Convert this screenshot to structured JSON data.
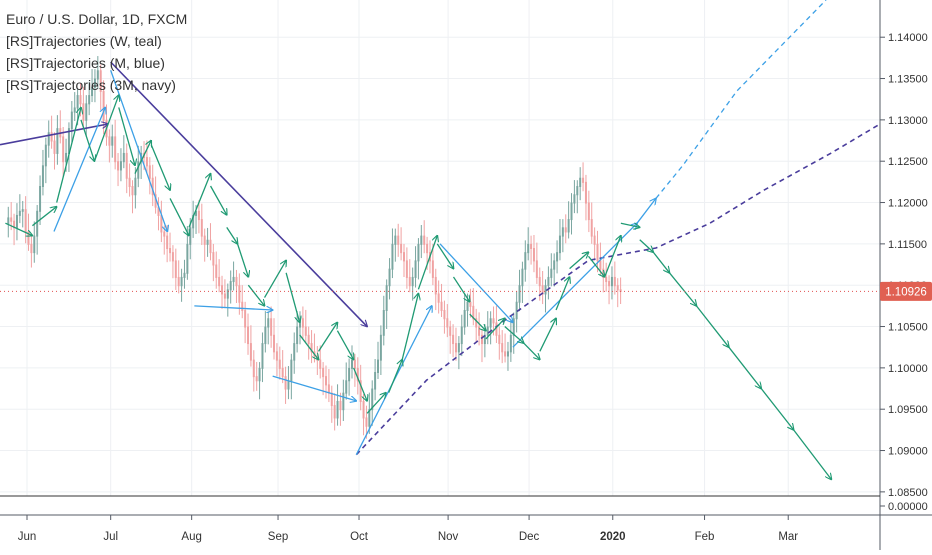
{
  "legend": {
    "title": "Euro / U.S. Dollar, 1D, FXCM",
    "indicators": [
      "[RS]Trajectories (W, teal)",
      "[RS]Trajectories (M, blue)",
      "[RS]Trajectories (3M, navy)"
    ]
  },
  "colors": {
    "grid": "#eef0f3",
    "axis": "#555b66",
    "candle_up": "#7aa6a0",
    "candle_down": "#f0a2a2",
    "teal": "#1f9a73",
    "blue": "#3ca0e6",
    "navy": "#4a3d9c",
    "price_line": "#e05151",
    "price_badge": "#e06052"
  },
  "chart_data": {
    "type": "candlestick",
    "x_ticks": [
      {
        "label": "Jun",
        "day": 2
      },
      {
        "label": "Jul",
        "day": 33
      },
      {
        "label": "Aug",
        "day": 63
      },
      {
        "label": "Sep",
        "day": 95
      },
      {
        "label": "Oct",
        "day": 125
      },
      {
        "label": "Nov",
        "day": 158
      },
      {
        "label": "Dec",
        "day": 188
      },
      {
        "label": "2020",
        "day": 219,
        "bold": true
      },
      {
        "label": "Feb",
        "day": 253
      },
      {
        "label": "Mar",
        "day": 284
      }
    ],
    "y_ticks": [
      "1.14000",
      "1.13500",
      "1.13000",
      "1.12500",
      "1.12000",
      "1.11500",
      "1.11000",
      "1.10500",
      "1.10000",
      "1.09500",
      "1.09000",
      "1.08500"
    ],
    "lower_pane_ticks": [
      "0.00000"
    ],
    "current_price": "1.10926",
    "ylim": [
      1.0845,
      1.1445
    ],
    "xlim": [
      -8,
      318
    ],
    "closes": [
      1.1175,
      1.1182,
      1.1178,
      1.117,
      1.1185,
      1.119,
      1.1192,
      1.1165,
      1.115,
      1.114,
      1.116,
      1.119,
      1.122,
      1.1245,
      1.127,
      1.1285,
      1.1275,
      1.126,
      1.129,
      1.128,
      1.125,
      1.126,
      1.129,
      1.131,
      1.1315,
      1.133,
      1.132,
      1.13,
      1.132,
      1.133,
      1.134,
      1.135,
      1.136,
      1.1335,
      1.13,
      1.128,
      1.127,
      1.128,
      1.125,
      1.124,
      1.125,
      1.126,
      1.123,
      1.122,
      1.121,
      1.123,
      1.125,
      1.126,
      1.1255,
      1.1245,
      1.123,
      1.121,
      1.1195,
      1.1185,
      1.1165,
      1.116,
      1.1145,
      1.114,
      1.113,
      1.111,
      1.11,
      1.111,
      1.1115,
      1.115,
      1.117,
      1.1185,
      1.119,
      1.118,
      1.116,
      1.115,
      1.1155,
      1.114,
      1.1125,
      1.111,
      1.11,
      1.109,
      1.1085,
      1.1095,
      1.1105,
      1.111,
      1.11,
      1.108,
      1.107,
      1.105,
      1.103,
      1.101,
      1.099,
      1.0985,
      1.1,
      1.103,
      1.105,
      1.106,
      1.104,
      1.102,
      1.101,
      1.1,
      1.099,
      1.0975,
      1.0985,
      1.101,
      1.103,
      1.105,
      1.106,
      1.105,
      1.104,
      1.103,
      1.102,
      1.1015,
      1.101,
      1.1,
      1.099,
      1.098,
      1.097,
      1.0955,
      1.094,
      1.096,
      1.095,
      1.097,
      1.0985,
      1.1,
      1.101,
      1.1,
      1.0985,
      1.096,
      1.094,
      1.093,
      1.095,
      1.0975,
      1.0995,
      1.101,
      1.104,
      1.107,
      1.11,
      1.112,
      1.115,
      1.116,
      1.115,
      1.114,
      1.113,
      1.111,
      1.11,
      1.111,
      1.113,
      1.115,
      1.116,
      1.115,
      1.114,
      1.113,
      1.111,
      1.109,
      1.108,
      1.107,
      1.106,
      1.105,
      1.104,
      1.103,
      1.102,
      1.103,
      1.105,
      1.107,
      1.108,
      1.1075,
      1.106,
      1.105,
      1.104,
      1.103,
      1.104,
      1.105,
      1.106,
      1.1055,
      1.104,
      1.103,
      1.102,
      1.1015,
      1.102,
      1.104,
      1.106,
      1.108,
      1.11,
      1.112,
      1.114,
      1.115,
      1.1145,
      1.113,
      1.111,
      1.11,
      1.109,
      1.11,
      1.111,
      1.112,
      1.113,
      1.114,
      1.116,
      1.117,
      1.1165,
      1.118,
      1.12,
      1.121,
      1.122,
      1.123,
      1.1225,
      1.12,
      1.118,
      1.116,
      1.115,
      1.113,
      1.112,
      1.111,
      1.1105,
      1.11,
      1.111,
      1.11,
      1.1095,
      1.1093
    ],
    "trajectories": {
      "teal": [
        [
          [
            -6,
            1.1175
          ],
          [
            4,
            1.116
          ]
        ],
        [
          [
            4,
            1.1172
          ],
          [
            13,
            1.1195
          ]
        ],
        [
          [
            13,
            1.12
          ],
          [
            22,
            1.1315
          ]
        ],
        [
          [
            22,
            1.13
          ],
          [
            27,
            1.125
          ]
        ],
        [
          [
            27,
            1.125
          ],
          [
            36,
            1.133
          ]
        ],
        [
          [
            36,
            1.1315
          ],
          [
            42,
            1.1245
          ]
        ],
        [
          [
            42,
            1.1235
          ],
          [
            48,
            1.1275
          ]
        ],
        [
          [
            48,
            1.127
          ],
          [
            55,
            1.1215
          ]
        ],
        [
          [
            55,
            1.1205
          ],
          [
            62,
            1.116
          ]
        ],
        [
          [
            62,
            1.117
          ],
          [
            70,
            1.1235
          ]
        ],
        [
          [
            70,
            1.122
          ],
          [
            76,
            1.1185
          ]
        ],
        [
          [
            76,
            1.117
          ],
          [
            80,
            1.115
          ]
        ],
        [
          [
            80,
            1.115
          ],
          [
            84,
            1.111
          ]
        ],
        [
          [
            84,
            1.11
          ],
          [
            90,
            1.1075
          ]
        ],
        [
          [
            90,
            1.1085
          ],
          [
            98,
            1.113
          ]
        ],
        [
          [
            98,
            1.1115
          ],
          [
            103,
            1.1055
          ]
        ],
        [
          [
            103,
            1.104
          ],
          [
            110,
            1.101
          ]
        ],
        [
          [
            110,
            1.102
          ],
          [
            117,
            1.1055
          ]
        ],
        [
          [
            117,
            1.1045
          ],
          [
            123,
            1.101
          ]
        ],
        [
          [
            123,
            1.1
          ],
          [
            128,
            1.096
          ]
        ],
        [
          [
            128,
            1.0945
          ],
          [
            135,
            1.097
          ]
        ],
        [
          [
            136,
            1.097
          ],
          [
            141,
            1.101
          ]
        ],
        [
          [
            141,
            1.101
          ],
          [
            147,
            1.109
          ]
        ],
        [
          [
            147,
            1.1095
          ],
          [
            154,
            1.116
          ]
        ],
        [
          [
            154,
            1.115
          ],
          [
            160,
            1.112
          ]
        ],
        [
          [
            160,
            1.111
          ],
          [
            166,
            1.108
          ]
        ],
        [
          [
            166,
            1.1065
          ],
          [
            172,
            1.1045
          ]
        ],
        [
          [
            172,
            1.1035
          ],
          [
            179,
            1.106
          ]
        ],
        [
          [
            179,
            1.105
          ],
          [
            186,
            1.103
          ]
        ],
        [
          [
            186,
            1.103
          ],
          [
            192,
            1.101
          ]
        ],
        [
          [
            192,
            1.102
          ],
          [
            198,
            1.106
          ]
        ],
        [
          [
            198,
            1.107
          ],
          [
            203,
            1.111
          ]
        ],
        [
          [
            203,
            1.112
          ],
          [
            210,
            1.114
          ]
        ],
        [
          [
            210,
            1.1135
          ],
          [
            216,
            1.111
          ]
        ],
        [
          [
            216,
            1.111
          ],
          [
            222,
            1.116
          ]
        ],
        [
          [
            222,
            1.1175
          ],
          [
            229,
            1.117
          ]
        ],
        [
          [
            229,
            1.1155
          ],
          [
            234,
            1.114
          ]
        ],
        [
          [
            234,
            1.114
          ],
          [
            240,
            1.1115
          ]
        ],
        [
          [
            240,
            1.1115
          ],
          [
            250,
            1.1075
          ]
        ],
        [
          [
            250,
            1.1075
          ],
          [
            262,
            1.1025
          ]
        ],
        [
          [
            262,
            1.1025
          ],
          [
            274,
            1.0975
          ]
        ],
        [
          [
            274,
            1.0975
          ],
          [
            286,
            1.0925
          ]
        ],
        [
          [
            286,
            1.0925
          ],
          [
            300,
            1.0865
          ]
        ]
      ],
      "blue": [
        [
          [
            12,
            1.1165
          ],
          [
            31,
            1.1315
          ]
        ],
        [
          [
            33,
            1.136
          ],
          [
            54,
            1.1165
          ]
        ],
        [
          [
            64,
            1.1075
          ],
          [
            93,
            1.107
          ]
        ],
        [
          [
            93,
            1.099
          ],
          [
            124,
            1.096
          ]
        ],
        [
          [
            124,
            1.0895
          ],
          [
            152,
            1.1075
          ]
        ],
        [
          [
            155,
            1.115
          ],
          [
            182,
            1.1055
          ]
        ],
        [
          [
            182,
            1.1025
          ],
          [
            228,
            1.1175
          ]
        ],
        [
          [
            228,
            1.1175
          ],
          [
            235,
            1.1205
          ]
        ],
        [
          [
            235,
            1.1205
          ],
          [
            245,
            1.1245
          ],
          [
            255,
            1.129
          ],
          [
            265,
            1.1335
          ],
          [
            280,
            1.1385
          ],
          [
            298,
            1.1445
          ]
        ]
      ],
      "navy": [
        [
          [
            -8,
            1.127
          ],
          [
            32,
            1.1295
          ]
        ],
        [
          [
            33,
            1.137
          ],
          [
            128,
            1.105
          ]
        ],
        [
          [
            124,
            1.0895
          ],
          [
            150,
            1.0985
          ],
          [
            180,
            1.106
          ],
          [
            210,
            1.113
          ],
          [
            235,
            1.1145
          ],
          [
            255,
            1.1175
          ],
          [
            275,
            1.1215
          ],
          [
            300,
            1.126
          ],
          [
            318,
            1.1295
          ]
        ]
      ]
    }
  }
}
